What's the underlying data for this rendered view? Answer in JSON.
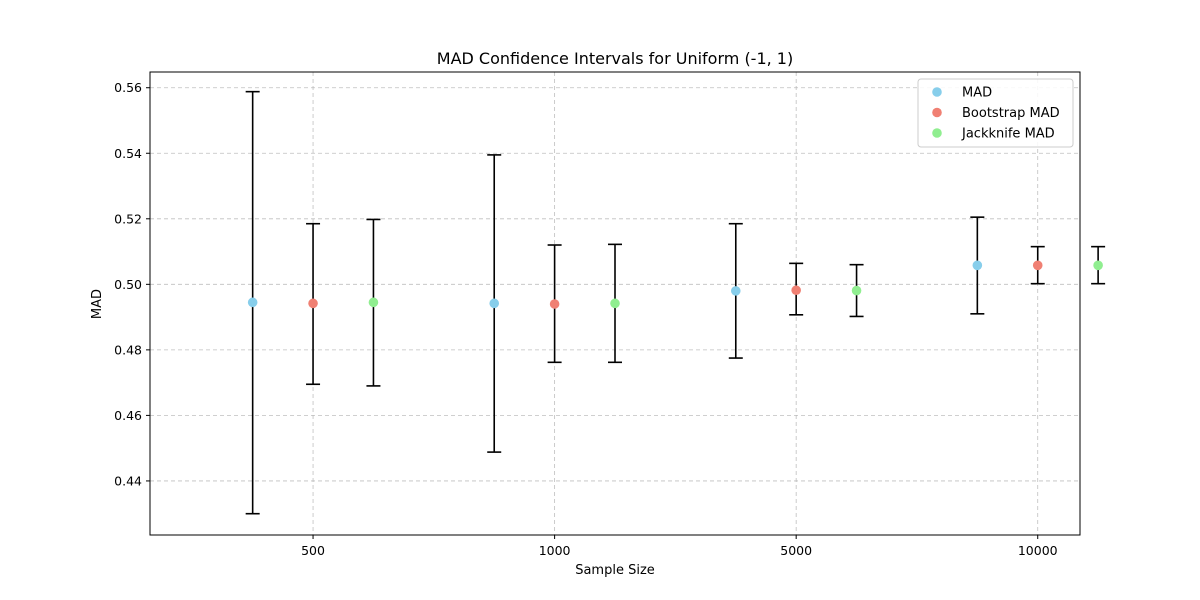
{
  "chart_data": {
    "type": "errorbar-scatter",
    "title": "MAD Confidence Intervals for Uniform (-1, 1)",
    "xlabel": "Sample Size",
    "ylabel": "MAD",
    "categories": [
      "500",
      "1000",
      "5000",
      "10000"
    ],
    "ylim": [
      0.4235,
      0.5648
    ],
    "yticks": [
      0.44,
      0.46,
      0.48,
      0.5,
      0.52,
      0.54,
      0.56
    ],
    "ytick_labels": [
      "0.44",
      "0.46",
      "0.48",
      "0.50",
      "0.52",
      "0.54",
      "0.56"
    ],
    "grid": true,
    "legend_position": "top-right",
    "series": [
      {
        "name": "MAD",
        "color": "#87ceeb",
        "offset": -0.25,
        "values": [
          0.4945,
          0.4942,
          0.498,
          0.5058
        ],
        "lower": [
          0.43,
          0.4488,
          0.4775,
          0.491
        ],
        "upper": [
          0.5588,
          0.5395,
          0.5185,
          0.5205
        ]
      },
      {
        "name": "Bootstrap MAD",
        "color": "#f08073",
        "offset": 0.0,
        "values": [
          0.4942,
          0.494,
          0.4982,
          0.5058
        ],
        "lower": [
          0.4695,
          0.4762,
          0.4907,
          0.5002
        ],
        "upper": [
          0.5185,
          0.512,
          0.5064,
          0.5115
        ]
      },
      {
        "name": "Jackknife MAD",
        "color": "#90ee90",
        "offset": 0.25,
        "values": [
          0.4945,
          0.4942,
          0.4981,
          0.5058
        ],
        "lower": [
          0.469,
          0.4762,
          0.4902,
          0.5002
        ],
        "upper": [
          0.5198,
          0.5122,
          0.506,
          0.5115
        ]
      }
    ]
  }
}
